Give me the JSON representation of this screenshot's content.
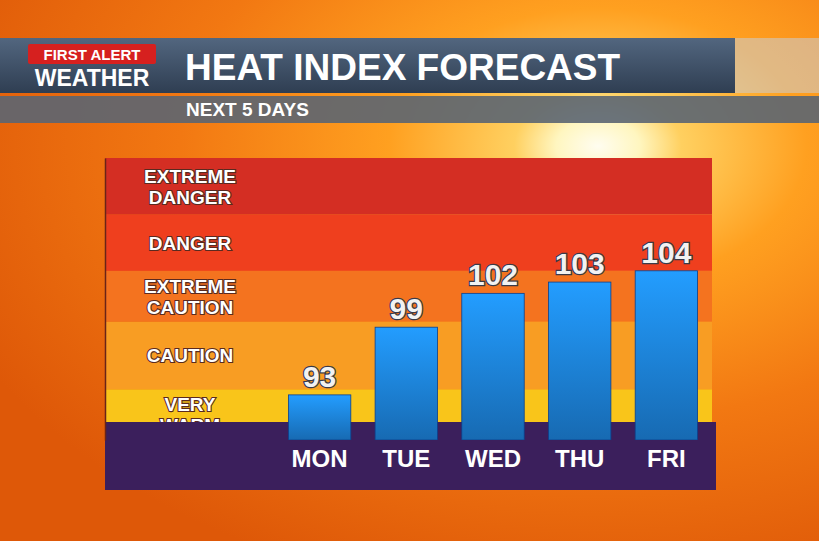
{
  "chart_data": {
    "type": "bar",
    "logo_lines": [
      "FIRST ALERT",
      "WEATHER"
    ],
    "title": "HEAT INDEX FORECAST",
    "subtitle": "NEXT 5 DAYS",
    "categories": [
      "MON",
      "TUE",
      "WED",
      "THU",
      "FRI"
    ],
    "values": [
      93,
      99,
      102,
      103,
      104
    ],
    "color": "#1e88e5",
    "ylim": [
      89,
      114
    ],
    "tick_labels": "x",
    "data_labels": true,
    "grid": false,
    "bands": [
      {
        "label": "VERY WARM",
        "from": 89,
        "to": 93.5,
        "color": "#f9c51a"
      },
      {
        "label": "CAUTION",
        "from": 93.5,
        "to": 99.5,
        "color": "#f89d23"
      },
      {
        "label": "EXTREME CAUTION",
        "from": 99.5,
        "to": 104,
        "color": "#f4731f"
      },
      {
        "label": "DANGER",
        "from": 104,
        "to": 109,
        "color": "#ef3f1e"
      },
      {
        "label": "EXTREME DANGER",
        "from": 109,
        "to": 114,
        "color": "#d42e23"
      }
    ]
  }
}
